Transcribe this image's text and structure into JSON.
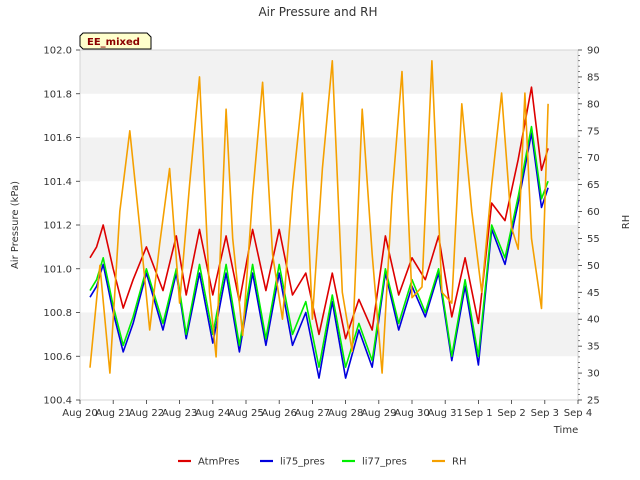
{
  "chart_data": {
    "type": "line",
    "title": "Air Pressure and RH",
    "badge": "EE_mixed",
    "xlabel": "Time",
    "ylabel_left": "Air Pressure (kPa)",
    "ylabel_right": "RH",
    "ylim_left": [
      100.4,
      102.0
    ],
    "ylim_right": [
      25,
      90
    ],
    "left_ticks": [
      "100.4",
      "100.6",
      "100.8",
      "101.0",
      "101.2",
      "101.4",
      "101.6",
      "101.8",
      "102.0"
    ],
    "right_ticks": [
      "25",
      "30",
      "35",
      "40",
      "45",
      "50",
      "55",
      "60",
      "65",
      "70",
      "75",
      "80",
      "85",
      "90"
    ],
    "x_ticks": [
      "Aug 20",
      "Aug 21",
      "Aug 22",
      "Aug 23",
      "Aug 24",
      "Aug 25",
      "Aug 26",
      "Aug 27",
      "Aug 28",
      "Aug 29",
      "Aug 30",
      "Aug 31",
      "Sep 1",
      "Sep 2",
      "Sep 3",
      "Sep 4"
    ],
    "x_days": [
      0,
      15
    ],
    "grid_band_colors": [
      "#f2f2f2",
      "#ffffff"
    ],
    "legend_position": "bottom-center",
    "series": [
      {
        "name": "AtmPres",
        "axis": "left",
        "color": "#dd0000",
        "x": [
          0.3,
          0.5,
          0.7,
          1.0,
          1.3,
          1.6,
          2.0,
          2.5,
          2.9,
          3.2,
          3.6,
          4.0,
          4.4,
          4.8,
          5.2,
          5.6,
          6.0,
          6.4,
          6.8,
          7.2,
          7.6,
          8.0,
          8.4,
          8.8,
          9.2,
          9.6,
          10.0,
          10.4,
          10.8,
          11.2,
          11.6,
          12.0,
          12.4,
          12.8,
          13.2,
          13.6,
          13.9,
          14.1
        ],
        "y": [
          101.05,
          101.1,
          101.2,
          101.0,
          100.82,
          100.95,
          101.1,
          100.9,
          101.15,
          100.88,
          101.18,
          100.88,
          101.15,
          100.85,
          101.18,
          100.9,
          101.18,
          100.88,
          100.98,
          100.7,
          100.98,
          100.68,
          100.86,
          100.72,
          101.15,
          100.88,
          101.05,
          100.95,
          101.15,
          100.78,
          101.05,
          100.75,
          101.3,
          101.22,
          101.5,
          101.83,
          101.45,
          101.55
        ]
      },
      {
        "name": "li75_pres",
        "axis": "left",
        "color": "#0000dd",
        "x": [
          0.3,
          0.5,
          0.7,
          1.0,
          1.3,
          1.6,
          2.0,
          2.5,
          2.9,
          3.2,
          3.6,
          4.0,
          4.4,
          4.8,
          5.2,
          5.6,
          6.0,
          6.4,
          6.8,
          7.2,
          7.6,
          8.0,
          8.4,
          8.8,
          9.2,
          9.6,
          10.0,
          10.4,
          10.8,
          11.2,
          11.6,
          12.0,
          12.4,
          12.8,
          13.2,
          13.6,
          13.9,
          14.1
        ],
        "y": [
          100.87,
          100.92,
          101.02,
          100.8,
          100.62,
          100.75,
          100.98,
          100.72,
          100.98,
          100.68,
          100.98,
          100.66,
          100.98,
          100.62,
          100.98,
          100.65,
          100.98,
          100.65,
          100.8,
          100.5,
          100.85,
          100.5,
          100.72,
          100.55,
          100.98,
          100.72,
          100.92,
          100.78,
          100.98,
          100.58,
          100.92,
          100.56,
          101.18,
          101.02,
          101.3,
          101.62,
          101.28,
          101.37
        ]
      },
      {
        "name": "li77_pres",
        "axis": "left",
        "color": "#00ee00",
        "x": [
          0.3,
          0.5,
          0.7,
          1.0,
          1.3,
          1.6,
          2.0,
          2.5,
          2.9,
          3.2,
          3.6,
          4.0,
          4.4,
          4.8,
          5.2,
          5.6,
          6.0,
          6.4,
          6.8,
          7.2,
          7.6,
          8.0,
          8.4,
          8.8,
          9.2,
          9.6,
          10.0,
          10.4,
          10.8,
          11.2,
          11.6,
          12.0,
          12.4,
          12.8,
          13.2,
          13.6,
          13.9,
          14.1
        ],
        "y": [
          100.9,
          100.95,
          101.05,
          100.83,
          100.65,
          100.78,
          101.0,
          100.75,
          101.0,
          100.7,
          101.02,
          100.7,
          101.02,
          100.65,
          101.02,
          100.68,
          101.02,
          100.7,
          100.85,
          100.55,
          100.88,
          100.55,
          100.75,
          100.58,
          101.0,
          100.75,
          100.95,
          100.8,
          101.0,
          100.6,
          100.95,
          100.6,
          101.2,
          101.05,
          101.33,
          101.65,
          101.32,
          101.4
        ]
      },
      {
        "name": "RH",
        "axis": "right",
        "color": "#f5a000",
        "x": [
          0.3,
          0.6,
          0.9,
          1.2,
          1.5,
          1.8,
          2.1,
          2.4,
          2.7,
          3.0,
          3.3,
          3.6,
          3.9,
          4.1,
          4.4,
          4.6,
          4.9,
          5.2,
          5.5,
          5.8,
          6.1,
          6.4,
          6.7,
          7.0,
          7.3,
          7.6,
          7.9,
          8.2,
          8.5,
          8.8,
          9.1,
          9.4,
          9.7,
          10.0,
          10.3,
          10.6,
          10.9,
          11.2,
          11.5,
          11.8,
          12.1,
          12.4,
          12.7,
          13.0,
          13.2,
          13.4,
          13.6,
          13.9,
          14.1
        ],
        "y": [
          31,
          50,
          30,
          60,
          75,
          57,
          38,
          54,
          68,
          43,
          65,
          85,
          45,
          33,
          79,
          55,
          37,
          63,
          84,
          52,
          40,
          64,
          82,
          40,
          68,
          88,
          45,
          34,
          79,
          52,
          30,
          63,
          86,
          44,
          46,
          88,
          45,
          43,
          80,
          60,
          45,
          65,
          82,
          57,
          53,
          82,
          55,
          42,
          80
        ]
      }
    ],
    "legend": [
      "AtmPres",
      "li75_pres",
      "li77_pres",
      "RH"
    ]
  }
}
